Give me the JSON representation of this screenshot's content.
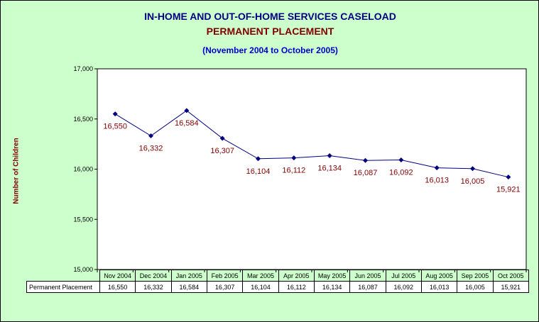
{
  "title": "IN-HOME AND OUT-OF-HOME SERVICES CASELOAD",
  "subtitle_main": "PERMANENT PLACEMENT",
  "subtitle_range": "(November 2004 to October 2005)",
  "colors": {
    "background": "#ccffcc",
    "plot_area": "#ffffff",
    "line": "#000080",
    "data_label": "#800000",
    "title": "#000080"
  },
  "chart_data": {
    "type": "line",
    "title": "IN-HOME AND OUT-OF-HOME SERVICES CASELOAD",
    "subtitle": "PERMANENT PLACEMENT",
    "ylabel": "Number of Children",
    "xlabel": "",
    "ylim": [
      15000,
      17000
    ],
    "yticks": [
      "15,000",
      "15,500",
      "16,000",
      "16,500",
      "17,000"
    ],
    "grid": false,
    "categories": [
      "Nov 2004",
      "Dec 2004",
      "Jan 2005",
      "Feb 2005",
      "Mar 2005",
      "Apr 2005",
      "May 2005",
      "Jun 2005",
      "Jul 2005",
      "Aug 2005",
      "Sep 2005",
      "Oct 2005"
    ],
    "series": [
      {
        "name": "Permanent Placement",
        "values": [
          16550,
          16332,
          16584,
          16307,
          16104,
          16112,
          16134,
          16087,
          16092,
          16013,
          16005,
          15921
        ],
        "labels": [
          "16,550",
          "16,332",
          "16,584",
          "16,307",
          "16,104",
          "16,112",
          "16,134",
          "16,087",
          "16,092",
          "16,013",
          "16,005",
          "15,921"
        ]
      }
    ]
  }
}
